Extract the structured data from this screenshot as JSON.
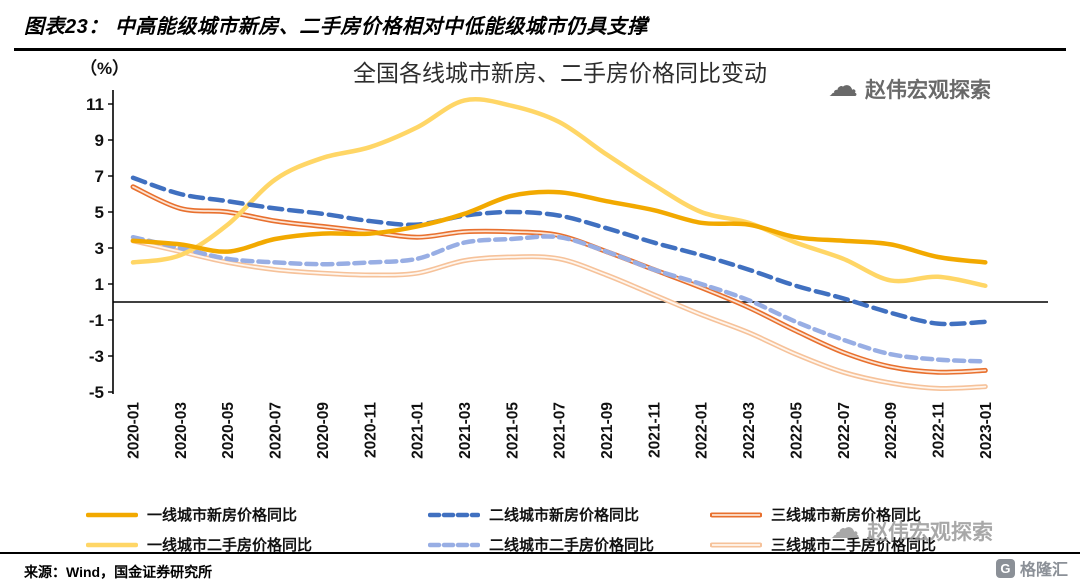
{
  "header": {
    "prefix": "图表23：",
    "title": "中高能级城市新房、二手房价格相对中低能级城市仍具支撑"
  },
  "watermark": {
    "text": "赵伟宏观探索"
  },
  "brand": {
    "logo_text": "格隆汇",
    "logo_glyph": "G"
  },
  "source": {
    "text": "来源：Wind，国金证券研究所"
  },
  "chart_data": {
    "type": "line",
    "title": "全国各线城市新房、二手房价格同比变动",
    "unit_label": "（%）",
    "ylim": [
      -5,
      11
    ],
    "yticks": [
      11,
      9,
      7,
      5,
      3,
      1,
      -1,
      -3,
      -5
    ],
    "grid": false,
    "legend_position": "bottom",
    "categories": [
      "2020-01",
      "2020-03",
      "2020-05",
      "2020-07",
      "2020-09",
      "2020-11",
      "2021-01",
      "2021-03",
      "2021-05",
      "2021-07",
      "2021-09",
      "2021-11",
      "2022-01",
      "2022-03",
      "2022-05",
      "2022-07",
      "2022-09",
      "2022-11",
      "2023-01"
    ],
    "series": [
      {
        "name": "一线城市新房价格同比",
        "color": "#F2A900",
        "style": "solid",
        "width": 4.5,
        "values": [
          3.4,
          3.2,
          2.8,
          3.5,
          3.8,
          3.8,
          4.2,
          4.9,
          5.9,
          6.1,
          5.6,
          5.1,
          4.4,
          4.3,
          3.6,
          3.4,
          3.2,
          2.5,
          2.2
        ]
      },
      {
        "name": "二线城市新房价格同比",
        "color": "#4070C0",
        "style": "dashed",
        "width": 4.5,
        "dash": "13 7",
        "values": [
          6.9,
          6.0,
          5.6,
          5.2,
          4.9,
          4.5,
          4.3,
          4.8,
          5.0,
          4.8,
          4.1,
          3.3,
          2.6,
          1.8,
          0.9,
          0.2,
          -0.6,
          -1.2,
          -1.1
        ]
      },
      {
        "name": "三线城市新房价格同比",
        "color": "#E8702E",
        "style": "tube",
        "width": 5,
        "inner": "#FCE4D4",
        "values": [
          6.4,
          5.2,
          5.0,
          4.5,
          4.2,
          3.9,
          3.6,
          3.9,
          3.9,
          3.7,
          2.8,
          1.8,
          0.8,
          -0.3,
          -1.6,
          -2.8,
          -3.6,
          -3.9,
          -3.8
        ]
      },
      {
        "name": "一线城市二手房价格同比",
        "color": "#FFD666",
        "style": "solid",
        "width": 4.5,
        "values": [
          2.2,
          2.6,
          4.3,
          6.8,
          8.0,
          8.6,
          9.7,
          11.2,
          10.9,
          10.0,
          8.2,
          6.5,
          5.0,
          4.4,
          3.3,
          2.4,
          1.2,
          1.4,
          0.9
        ]
      },
      {
        "name": "二线城市二手房价格同比",
        "color": "#98AEE4",
        "style": "dashed",
        "width": 4.5,
        "dash": "10 6",
        "values": [
          3.6,
          3.0,
          2.4,
          2.2,
          2.1,
          2.2,
          2.4,
          3.3,
          3.5,
          3.6,
          2.8,
          1.8,
          1.0,
          0.1,
          -1.1,
          -2.1,
          -2.9,
          -3.2,
          -3.3
        ]
      },
      {
        "name": "三线城市二手房价格同比",
        "color": "#F6C29A",
        "style": "tube",
        "width": 5,
        "inner": "#FFF6EE",
        "values": [
          3.4,
          2.8,
          2.2,
          1.8,
          1.6,
          1.5,
          1.6,
          2.3,
          2.5,
          2.4,
          1.5,
          0.4,
          -0.7,
          -1.7,
          -2.9,
          -3.9,
          -4.5,
          -4.8,
          -4.7
        ]
      }
    ],
    "draw_order": [
      5,
      2,
      4,
      3,
      1,
      0
    ],
    "axis_color": "#000000",
    "zero_line": true
  }
}
